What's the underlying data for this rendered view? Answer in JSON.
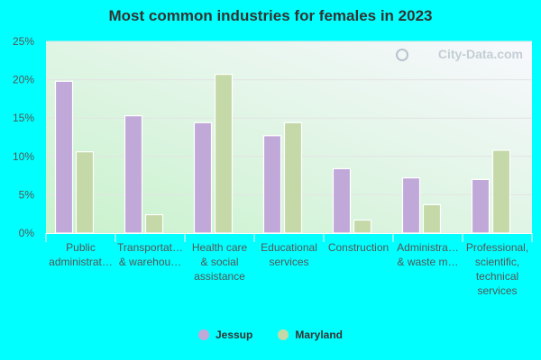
{
  "chart_data": {
    "type": "bar",
    "title": "Most common industries for females in 2023",
    "categories": [
      [
        "Public",
        "administrat…"
      ],
      [
        "Transportat…",
        "& warehou…"
      ],
      [
        "Health care",
        "& social",
        "assistance"
      ],
      [
        "Educational",
        "services"
      ],
      [
        "Construction"
      ],
      [
        "Administra…",
        "& waste m…"
      ],
      [
        "Professional,",
        "scientific,",
        "technical",
        "services"
      ]
    ],
    "series": [
      {
        "name": "Jessup",
        "color": "#c0a8d8",
        "values": [
          19.8,
          15.3,
          14.4,
          12.7,
          8.4,
          7.2,
          7.0
        ]
      },
      {
        "name": "Maryland",
        "color": "#c4d8a8",
        "values": [
          10.6,
          2.4,
          20.7,
          14.4,
          1.7,
          3.7,
          10.8
        ]
      }
    ],
    "ylim": [
      0,
      25
    ],
    "yticks": [
      "0%",
      "5%",
      "10%",
      "15%",
      "20%",
      "25%"
    ],
    "ytick_values": [
      0,
      5,
      10,
      15,
      20,
      25
    ],
    "grid": true,
    "legend": "bottom-center",
    "watermark": "City-Data.com"
  }
}
